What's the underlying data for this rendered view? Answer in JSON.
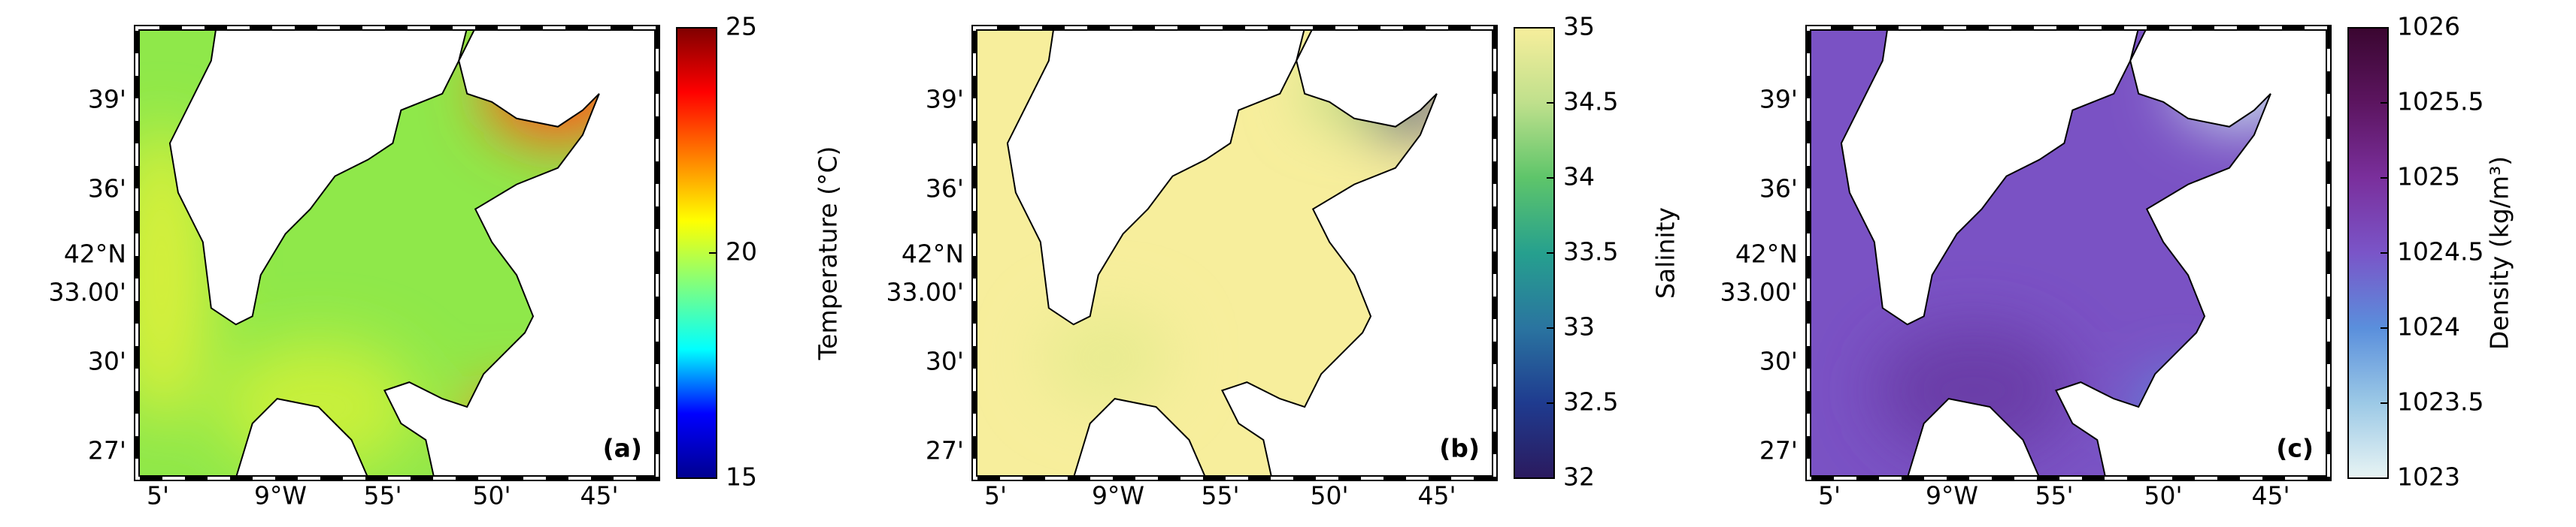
{
  "panels": [
    {
      "label": "(a)",
      "colorbar": {
        "label": "Temperature (°C)",
        "lim": [
          15,
          25
        ],
        "ticks": [
          15,
          20,
          25
        ],
        "colors": [
          "#00008f",
          "#0000ff",
          "#00ffff",
          "#7fff7f",
          "#ffff00",
          "#ff7f00",
          "#ff0000",
          "#800000"
        ]
      }
    },
    {
      "label": "(b)",
      "colorbar": {
        "label": "Salinity",
        "lim": [
          32,
          35
        ],
        "ticks": [
          32,
          32.5,
          33,
          33.5,
          34,
          34.5,
          35
        ],
        "colors": [
          "#2b1a5e",
          "#1f3b8f",
          "#2a74a0",
          "#26a08e",
          "#5ec56a",
          "#bfe08c",
          "#f7ee9c"
        ]
      }
    },
    {
      "label": "(c)",
      "colorbar": {
        "label": "Density (kg/m³)",
        "lim": [
          1023,
          1026
        ],
        "ticks": [
          1023,
          1023.5,
          1024,
          1024.5,
          1025,
          1025.5,
          1026
        ],
        "colors": [
          "#e8f4f4",
          "#9cc9e6",
          "#5a8fdc",
          "#7a55c8",
          "#7a2f9c",
          "#5c1560",
          "#3a0630"
        ]
      }
    }
  ],
  "lat_ticks": [
    "39'",
    "36'",
    "42°N",
    "33.00'",
    "30'",
    "27'"
  ],
  "lon_ticks": [
    "5'",
    "9°W",
    "55'",
    "50'",
    "45'"
  ]
}
